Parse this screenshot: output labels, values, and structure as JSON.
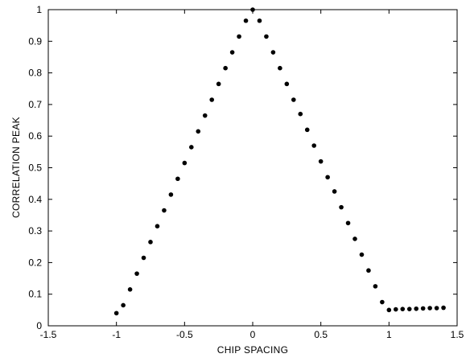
{
  "chart_data": {
    "type": "scatter",
    "title": "",
    "xlabel": "CHIP SPACING",
    "ylabel": "CORRELATION PEAK",
    "xlim": [
      -1.5,
      1.5
    ],
    "ylim": [
      0,
      1
    ],
    "xticks": [
      -1.5,
      -1,
      -0.5,
      0,
      0.5,
      1,
      1.5
    ],
    "xtick_labels": [
      "-1.5",
      "-1",
      "-0.5",
      "0",
      "0.5",
      "1",
      "1.5"
    ],
    "yticks": [
      0,
      0.1,
      0.2,
      0.3,
      0.4,
      0.5,
      0.6,
      0.7,
      0.8,
      0.9,
      1
    ],
    "ytick_labels": [
      "0",
      "0.1",
      "0.2",
      "0.3",
      "0.4",
      "0.5",
      "0.6",
      "0.7",
      "0.8",
      "0.9",
      "1"
    ],
    "grid": false,
    "marker_color": "#000000",
    "series": [
      {
        "x": [
          -1.0,
          -0.95,
          -0.9,
          -0.85,
          -0.8,
          -0.75,
          -0.7,
          -0.65,
          -0.6,
          -0.55,
          -0.5,
          -0.45,
          -0.4,
          -0.35,
          -0.3,
          -0.25,
          -0.2,
          -0.15,
          -0.1,
          -0.05,
          0.0,
          0.05,
          0.1,
          0.15,
          0.2,
          0.25,
          0.3,
          0.35,
          0.4,
          0.45,
          0.5,
          0.55,
          0.6,
          0.65,
          0.7,
          0.75,
          0.8,
          0.85,
          0.9,
          0.95,
          1.0,
          1.05,
          1.1,
          1.15,
          1.2,
          1.25,
          1.3,
          1.35,
          1.4
        ],
        "y": [
          0.04,
          0.065,
          0.115,
          0.165,
          0.215,
          0.265,
          0.315,
          0.365,
          0.415,
          0.465,
          0.515,
          0.565,
          0.615,
          0.665,
          0.715,
          0.765,
          0.815,
          0.865,
          0.915,
          0.965,
          1.0,
          0.965,
          0.915,
          0.865,
          0.815,
          0.765,
          0.715,
          0.67,
          0.62,
          0.57,
          0.52,
          0.47,
          0.425,
          0.375,
          0.325,
          0.275,
          0.225,
          0.175,
          0.125,
          0.075,
          0.05,
          0.052,
          0.053,
          0.053,
          0.054,
          0.055,
          0.056,
          0.056,
          0.057
        ]
      }
    ]
  }
}
